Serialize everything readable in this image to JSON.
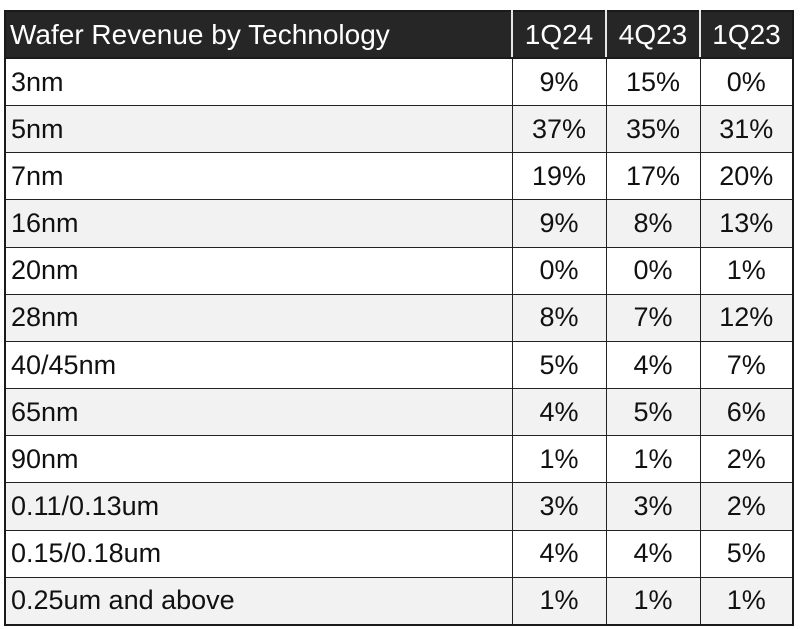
{
  "chart_data": {
    "type": "table",
    "title": "Wafer Revenue by Technology",
    "columns": [
      "1Q24",
      "4Q23",
      "1Q23"
    ],
    "rows": [
      {
        "label": "3nm",
        "values": [
          "9%",
          "15%",
          "0%"
        ]
      },
      {
        "label": "5nm",
        "values": [
          "37%",
          "35%",
          "31%"
        ]
      },
      {
        "label": "7nm",
        "values": [
          "19%",
          "17%",
          "20%"
        ]
      },
      {
        "label": "16nm",
        "values": [
          "9%",
          "8%",
          "13%"
        ]
      },
      {
        "label": "20nm",
        "values": [
          "0%",
          "0%",
          "1%"
        ]
      },
      {
        "label": "28nm",
        "values": [
          "8%",
          "7%",
          "12%"
        ]
      },
      {
        "label": "40/45nm",
        "values": [
          "5%",
          "4%",
          "7%"
        ]
      },
      {
        "label": "65nm",
        "values": [
          "4%",
          "5%",
          "6%"
        ]
      },
      {
        "label": "90nm",
        "values": [
          "1%",
          "1%",
          "2%"
        ]
      },
      {
        "label": "0.11/0.13um",
        "values": [
          "3%",
          "3%",
          "2%"
        ]
      },
      {
        "label": "0.15/0.18um",
        "values": [
          "4%",
          "4%",
          "5%"
        ]
      },
      {
        "label": "0.25um and above",
        "values": [
          "1%",
          "1%",
          "1%"
        ]
      }
    ]
  },
  "colors": {
    "header_background": "#262626",
    "header_text": "#ffffff",
    "row_alt_background": "#f2f2f2",
    "border": "#222222"
  }
}
